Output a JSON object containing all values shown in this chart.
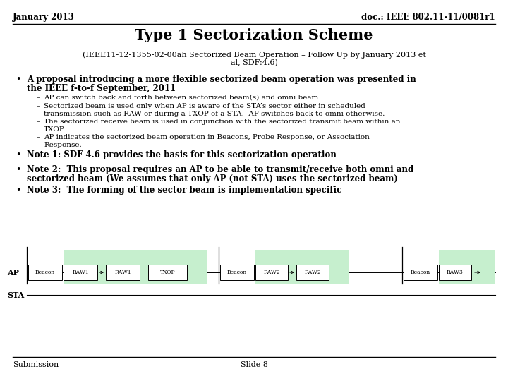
{
  "header_left": "January 2013",
  "header_right": "doc.: IEEE 802.11-11/0081r1",
  "title": "Type 1 Sectorization Scheme",
  "subtitle_line1": "(IEEE11-12-1355-02-00ah Sectorized Beam Operation – Follow Up by January 2013 et",
  "subtitle_line2": "al, SDF:4.6)",
  "bullet1_line1": "A proposal introducing a more flexible sectorized beam operation was presented in",
  "bullet1_line2": "the IEEE f-to-f September, 2011",
  "sub_bullets": [
    "AP can switch back and forth between sectorized beam(s) and omni beam",
    "Sectorized beam is used only when AP is aware of the STA’s sector either in scheduled\ntransmission such as RAW or during a TXOP of a STA.  AP switches back to omni otherwise.",
    "The sectorized receive beam is used in conjunction with the sectorized transmit beam within an\nTXOP",
    "AP indicates the sectorized beam operation in Beacons, Probe Response, or Association\nResponse."
  ],
  "note1": "Note 1: SDF 4.6 provides the basis for this sectorization operation",
  "note2_line1": "Note 2:  This proposal requires an AP to be able to transmit/receive both omni and",
  "note2_line2": "sectorized beam (We assumes that only AP (not STA) uses the sectorized beam)",
  "note3": "Note 3:  The forming of the sector beam is implementation specific",
  "footer_left": "Submission",
  "footer_center": "Slide 8",
  "bg_color": "#ffffff",
  "text_color": "#000000",
  "green_color": "#c6efce",
  "header_line_color": "#000000",
  "footer_line_color": "#000000"
}
